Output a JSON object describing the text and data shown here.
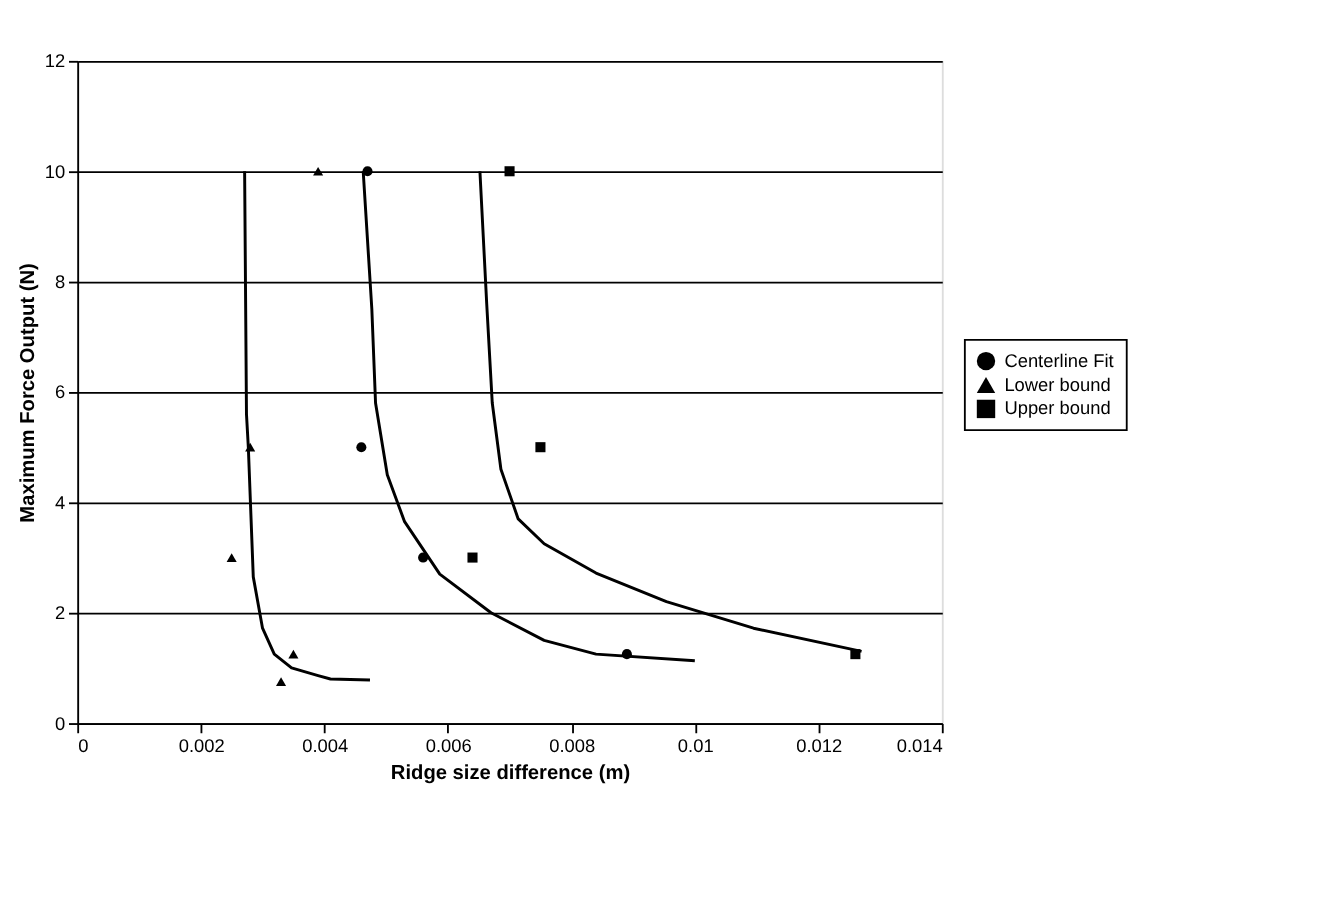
{
  "chart_data": {
    "type": "scatter",
    "xlabel": "Ridge size difference (m)",
    "ylabel": "Maximum Force Output (N)",
    "xlim": [
      0,
      0.014
    ],
    "xticks": [
      0,
      0.002,
      0.004,
      0.006,
      0.008,
      0.01,
      0.012,
      0.014
    ],
    "ylim": [
      0,
      12
    ],
    "yticks": [
      0,
      2,
      4,
      6,
      8,
      10,
      12
    ],
    "grid": "y",
    "legend": "right",
    "series": [
      {
        "name": "Centerline Fit",
        "marker": "circle",
        "color": "#000000",
        "x": [
          0.0047,
          0.0046,
          0.0056,
          0.0089
        ],
        "values": [
          10,
          5,
          3,
          1.25
        ]
      },
      {
        "name": "Lower bound",
        "marker": "triangle",
        "color": "#000000",
        "x": [
          0.0039,
          0.0028,
          0.0025,
          0.0035,
          0.0033
        ],
        "values": [
          10,
          5,
          3,
          1.25,
          0.75
        ]
      },
      {
        "name": "Upper bound",
        "marker": "square",
        "color": "#000000",
        "x": [
          0.007,
          0.0075,
          0.0064,
          0.0126
        ],
        "values": [
          10,
          5,
          3,
          1.25
        ]
      },
      {
        "type": "line",
        "marker": "none",
        "color": "#000000",
        "x": [
          0.00463,
          0.00477,
          0.00483,
          0.00502,
          0.0053,
          0.00587,
          0.0067,
          0.00756,
          0.0084,
          0.01
        ],
        "values": [
          10,
          7.5,
          5.8,
          4.5,
          3.65,
          2.7,
          2.0,
          1.5,
          1.25,
          1.13
        ]
      },
      {
        "type": "line",
        "marker": "none",
        "color": "#000000",
        "x": [
          0.00271,
          0.00274,
          0.00277,
          0.00285,
          0.003,
          0.00319,
          0.00347,
          0.0039,
          0.0041,
          0.00474
        ],
        "values": [
          10,
          5.6,
          5,
          2.65,
          1.72,
          1.25,
          1.0,
          0.86,
          0.8,
          0.78
        ]
      },
      {
        "type": "line",
        "marker": "none",
        "color": "#000000",
        "x": [
          0.00652,
          0.00663,
          0.00672,
          0.00686,
          0.00714,
          0.00756,
          0.0084,
          0.00954,
          0.01095,
          0.0127
        ],
        "values": [
          10,
          7.6,
          5.8,
          4.6,
          3.7,
          3.25,
          2.72,
          2.2,
          1.72,
          1.3
        ]
      }
    ]
  }
}
